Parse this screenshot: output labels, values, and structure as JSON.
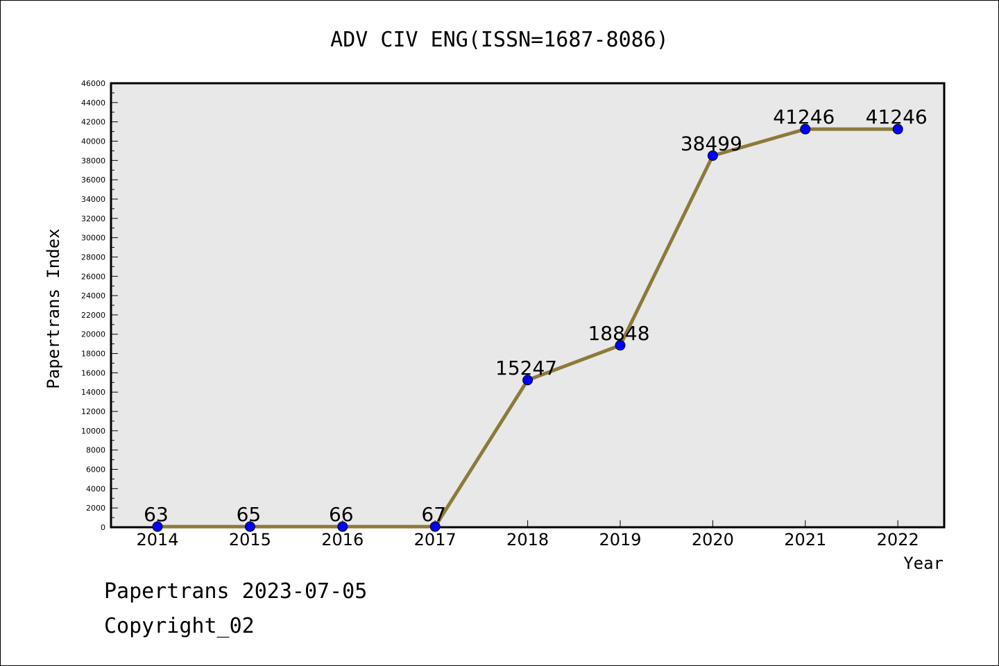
{
  "chart_data": {
    "type": "line",
    "title": "ADV CIV ENG(ISSN=1687-8086)",
    "xlabel": "Year",
    "ylabel": "Papertrans Index",
    "categories": [
      "2014",
      "2015",
      "2016",
      "2017",
      "2018",
      "2019",
      "2020",
      "2021",
      "2022"
    ],
    "series": [
      {
        "values": [
          63,
          65,
          66,
          67,
          15247,
          18848,
          38499,
          41246,
          41246
        ],
        "labels": [
          "63",
          "65",
          "66",
          "67",
          "15247",
          "18848",
          "38499",
          "41246",
          "41246"
        ]
      }
    ],
    "ylim": [
      0,
      46000
    ],
    "yticks": [
      "0",
      "2000",
      "4000",
      "6000",
      "8000",
      "10000",
      "12000",
      "14000",
      "16000",
      "18000",
      "20000",
      "22000",
      "24000",
      "26000",
      "28000",
      "30000",
      "32000",
      "34000",
      "36000",
      "38000",
      "40000",
      "42000",
      "44000",
      "46000"
    ],
    "grid": false,
    "colors": {
      "plot_background": "#e8e8e8",
      "line": "#8c7a3a",
      "marker": "#0000ff"
    }
  },
  "footer": {
    "date_line": "Papertrans 2023-07-05",
    "copyright": "Copyright_02"
  }
}
